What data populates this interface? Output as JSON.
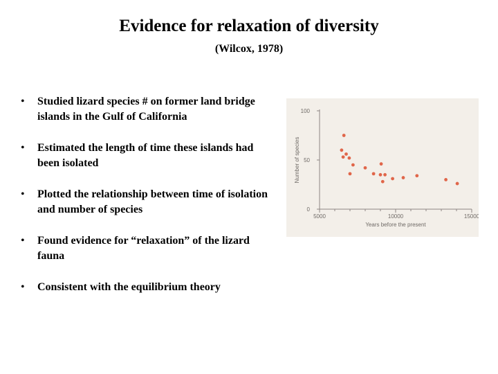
{
  "slide": {
    "title": "Evidence for relaxation of diversity",
    "subtitle": "(Wilcox, 1978)"
  },
  "bullets": [
    "Studied lizard species # on former land bridge islands in the Gulf of California",
    "Estimated the length of time these islands had been isolated",
    "Plotted the relationship between time of isolation and number of species",
    "Found evidence for “relaxation” of the lizard fauna",
    "Consistent with the equilibrium theory"
  ],
  "bullet_glyph": "•",
  "chart_data": {
    "type": "scatter",
    "title": "",
    "xlabel": "Years before the present",
    "ylabel": "Number of species",
    "xlim": [
      5000,
      15000
    ],
    "ylim": [
      0,
      100
    ],
    "xticks": [
      5000,
      10000,
      15000
    ],
    "xtick_labels": [
      "5000",
      "10000",
      "15000"
    ],
    "yticks": [
      0,
      50,
      100
    ],
    "ytick_labels": [
      "0",
      "50",
      "100"
    ],
    "point_color": "#e0664a",
    "axis_color": "#8c8682",
    "grid": false,
    "points": [
      {
        "x": 6600,
        "y": 75
      },
      {
        "x": 6450,
        "y": 60
      },
      {
        "x": 6750,
        "y": 56
      },
      {
        "x": 6550,
        "y": 53
      },
      {
        "x": 6950,
        "y": 52
      },
      {
        "x": 7200,
        "y": 45
      },
      {
        "x": 8000,
        "y": 42
      },
      {
        "x": 9050,
        "y": 46
      },
      {
        "x": 7000,
        "y": 36
      },
      {
        "x": 8550,
        "y": 36
      },
      {
        "x": 9000,
        "y": 35
      },
      {
        "x": 9300,
        "y": 35
      },
      {
        "x": 9150,
        "y": 28
      },
      {
        "x": 9800,
        "y": 31
      },
      {
        "x": 10500,
        "y": 32
      },
      {
        "x": 11400,
        "y": 34
      },
      {
        "x": 13300,
        "y": 30
      },
      {
        "x": 14050,
        "y": 26
      }
    ]
  }
}
